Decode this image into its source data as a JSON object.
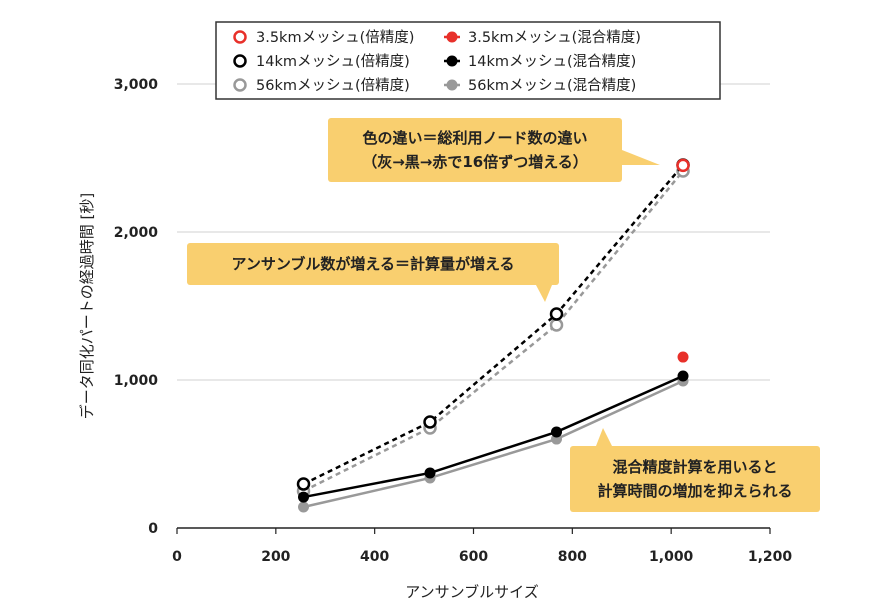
{
  "chart_data": {
    "type": "line",
    "xlabel": "アンサンブルサイズ",
    "ylabel": "データ同化パートの経過時間 [秒]",
    "xlim": [
      0,
      1200
    ],
    "ylim": [
      0,
      3000
    ],
    "xticks": [
      0,
      200,
      400,
      600,
      800,
      1000,
      1200
    ],
    "xtick_labels": [
      "0",
      "200",
      "400",
      "600",
      "800",
      "1,000",
      "1,200"
    ],
    "yticks": [
      0,
      1000,
      2000,
      3000
    ],
    "ytick_labels": [
      "0",
      "1,000",
      "2,000",
      "3,000"
    ],
    "grid": "horizontal",
    "legend_position": "top",
    "series": [
      {
        "name": "56kmメッシュ(倍精度)",
        "color": "#999999",
        "style": "dashed",
        "marker": "open",
        "x": [
          256,
          512,
          768,
          1024
        ],
        "y": [
          250,
          676,
          1372,
          2412
        ]
      },
      {
        "name": "14kmメッシュ(倍精度)",
        "color": "#000000",
        "style": "dashed",
        "marker": "open",
        "x": [
          256,
          512,
          768,
          1024
        ],
        "y": [
          297,
          716,
          1446,
          2453
        ]
      },
      {
        "name": "3.5kmメッシュ(倍精度)",
        "color": "#e8302a",
        "style": "none",
        "marker": "open",
        "x": [
          1024
        ],
        "y": [
          2450
        ]
      },
      {
        "name": "56kmメッシュ(混合精度)",
        "color": "#999999",
        "style": "solid",
        "marker": "filled",
        "x": [
          256,
          512,
          768,
          1024
        ],
        "y": [
          142,
          338,
          601,
          993
        ]
      },
      {
        "name": "14kmメッシュ(混合精度)",
        "color": "#000000",
        "style": "solid",
        "marker": "filled",
        "x": [
          256,
          512,
          768,
          1024
        ],
        "y": [
          209,
          372,
          649,
          1027
        ]
      },
      {
        "name": "3.5kmメッシュ(混合精度)",
        "color": "#e8302a",
        "style": "none",
        "marker": "filled",
        "x": [
          1024
        ],
        "y": [
          1155
        ]
      }
    ],
    "legend_order": [
      2,
      5,
      1,
      4,
      0,
      3
    ],
    "annotations": [
      {
        "lines": [
          "色の違い＝総利用ノード数の違い",
          "（灰→黒→赤で16倍ずつ増える）"
        ]
      },
      {
        "lines": [
          "アンサンブル数が増える＝計算量が増える"
        ]
      },
      {
        "lines": [
          "混合精度計算を用いると",
          "計算時間の増加を抑えられる"
        ]
      }
    ]
  }
}
